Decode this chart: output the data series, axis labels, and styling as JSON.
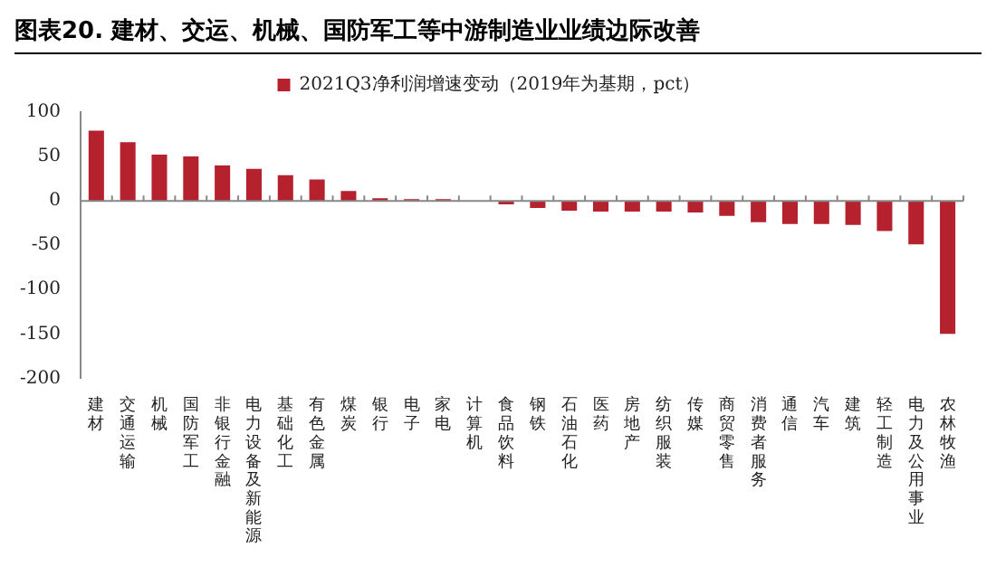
{
  "chart_data": {
    "type": "bar",
    "title": "图表20. 建材、交运、机械、国防军工等中游制造业业绩边际改善",
    "categories": [
      "建材",
      "交通运输",
      "机械",
      "国防军工",
      "非银行金融",
      "电力设备及新能源",
      "基础化工",
      "有色金属",
      "煤炭",
      "银行",
      "电子",
      "家电",
      "计算机",
      "食品饮料",
      "钢铁",
      "石油石化",
      "医药",
      "房地产",
      "纺织服装",
      "传媒",
      "商贸零售",
      "消费者服务",
      "通信",
      "汽车",
      "建筑",
      "轻工制造",
      "电力及公用事业",
      "农林牧渔"
    ],
    "series": [
      {
        "name": "2021Q3净利润增速变动（2019年为基期，pct）",
        "color": "#b5222d",
        "values": [
          79,
          66,
          52,
          50,
          40,
          36,
          29,
          24,
          11,
          3,
          2,
          2,
          -1,
          -4,
          -8,
          -11,
          -12,
          -12,
          -12,
          -13,
          -17,
          -24,
          -26,
          -26,
          -27,
          -34,
          -49,
          -150
        ]
      }
    ],
    "ylim": [
      -200,
      100
    ],
    "yticks": [
      -200,
      -150,
      -100,
      -50,
      0,
      50,
      100
    ],
    "legend": "top"
  }
}
